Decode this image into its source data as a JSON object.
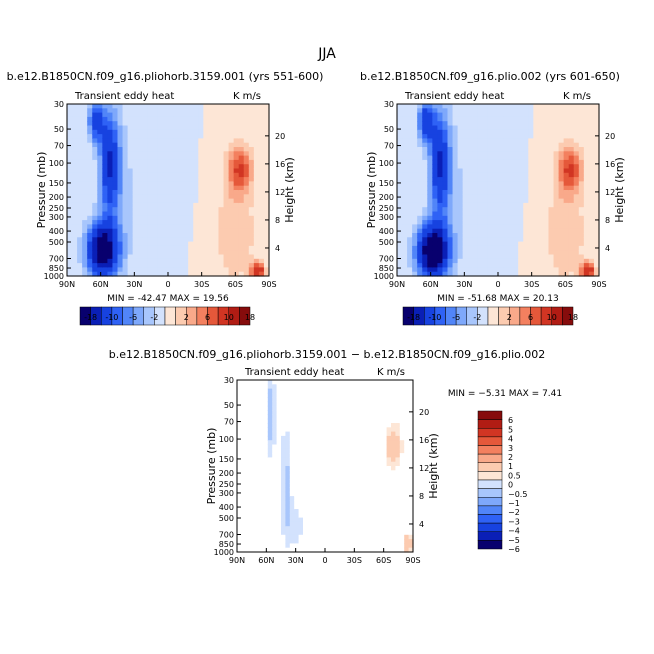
{
  "figure": {
    "title": "JJA"
  },
  "chart_data": [
    {
      "type": "heatmap",
      "title": "b.e12.B1850CN.f09_g16.pliohorb.3159.001 (yrs 551-600)",
      "subtitle_left": "Transient eddy heat",
      "subtitle_right": "K m/s",
      "ylabel": "Pressure (mb)",
      "ylabel_right": "Height (km)",
      "x_ticks": [
        "90N",
        "60N",
        "30N",
        "0",
        "30S",
        "60S",
        "90S"
      ],
      "y_ticks": [
        "30",
        "50",
        "70",
        "100",
        "150",
        "200",
        "250",
        "300",
        "400",
        "500",
        "700",
        "850",
        "1000"
      ],
      "height_ticks": [
        "20",
        "16",
        "12",
        "8",
        "4"
      ],
      "stats": {
        "min_label": "MIN =",
        "min": "-42.47",
        "max_label": "MAX =",
        "max": "19.56"
      },
      "colorbar_labels": [
        "-18",
        "-10",
        "-6",
        "-2",
        "2",
        "6",
        "10",
        "18"
      ],
      "fields": [
        {
          "sign": 1,
          "lat": -64,
          "p": 0.38,
          "wx": 11,
          "wy": 0.14,
          "amp": 10
        },
        {
          "sign": 1,
          "lat": -80,
          "p": 0.97,
          "wx": 6,
          "wy": 0.05,
          "amp": 14
        },
        {
          "sign": 1,
          "lat": -60,
          "p": 0.75,
          "wx": 18,
          "wy": 0.3,
          "amp": 4
        },
        {
          "sign": -1,
          "lat": 58,
          "p": 0.85,
          "wx": 14,
          "wy": 0.16,
          "amp": 22
        },
        {
          "sign": -1,
          "lat": 52,
          "p": 0.35,
          "wx": 9,
          "wy": 0.3,
          "amp": 14
        },
        {
          "sign": -1,
          "lat": 64,
          "p": 0.1,
          "wx": 7,
          "wy": 0.12,
          "amp": 12
        },
        {
          "sign": -1,
          "lat": 40,
          "p": 0.5,
          "wx": 12,
          "wy": 0.45,
          "amp": 2.5
        },
        {
          "sign": -1,
          "lat": -5,
          "p": 0.45,
          "wx": 12,
          "wy": 0.25,
          "amp": 1.2
        }
      ]
    },
    {
      "type": "heatmap",
      "title": "b.e12.B1850CN.f09_g16.plio.002 (yrs 601-650)",
      "subtitle_left": "Transient eddy heat",
      "subtitle_right": "K m/s",
      "ylabel": "Pressure (mb)",
      "ylabel_right": "Height (km)",
      "x_ticks": [
        "90N",
        "60N",
        "30N",
        "0",
        "30S",
        "60S",
        "90S"
      ],
      "y_ticks": [
        "30",
        "50",
        "70",
        "100",
        "150",
        "200",
        "250",
        "300",
        "400",
        "500",
        "700",
        "850",
        "1000"
      ],
      "height_ticks": [
        "20",
        "16",
        "12",
        "8",
        "4"
      ],
      "stats": {
        "min_label": "MIN =",
        "min": "-51.68",
        "max_label": "MAX =",
        "max": "20.13"
      },
      "colorbar_labels": [
        "-18",
        "-10",
        "-6",
        "-2",
        "2",
        "6",
        "10",
        "18"
      ],
      "fields": [
        {
          "sign": 1,
          "lat": -64,
          "p": 0.38,
          "wx": 11,
          "wy": 0.14,
          "amp": 10
        },
        {
          "sign": 1,
          "lat": -80,
          "p": 0.97,
          "wx": 6,
          "wy": 0.05,
          "amp": 14
        },
        {
          "sign": 1,
          "lat": -60,
          "p": 0.75,
          "wx": 18,
          "wy": 0.3,
          "amp": 4
        },
        {
          "sign": -1,
          "lat": 58,
          "p": 0.86,
          "wx": 14,
          "wy": 0.16,
          "amp": 24
        },
        {
          "sign": -1,
          "lat": 52,
          "p": 0.35,
          "wx": 9,
          "wy": 0.3,
          "amp": 14
        },
        {
          "sign": -1,
          "lat": 64,
          "p": 0.1,
          "wx": 7,
          "wy": 0.12,
          "amp": 13
        },
        {
          "sign": -1,
          "lat": 40,
          "p": 0.5,
          "wx": 12,
          "wy": 0.45,
          "amp": 2.5
        },
        {
          "sign": -1,
          "lat": -5,
          "p": 0.45,
          "wx": 12,
          "wy": 0.25,
          "amp": 1.2
        }
      ]
    },
    {
      "type": "heatmap",
      "title": "b.e12.B1850CN.f09_g16.pliohorb.3159.001 − b.e12.B1850CN.f09_g16.plio.002",
      "subtitle_left": "Transient eddy heat",
      "subtitle_right": "K m/s",
      "ylabel": "Pressure (mb)",
      "ylabel_right": "Height (km)",
      "x_ticks": [
        "90N",
        "60N",
        "30N",
        "0",
        "30S",
        "60S",
        "90S"
      ],
      "y_ticks": [
        "30",
        "50",
        "70",
        "100",
        "150",
        "200",
        "250",
        "300",
        "400",
        "500",
        "700",
        "850",
        "1000"
      ],
      "height_ticks": [
        "20",
        "16",
        "12",
        "8",
        "4"
      ],
      "stats": {
        "min_label": "MIN =",
        "min": "−5.31",
        "max_label": "MAX =",
        "max": "7.41"
      },
      "colorbar_labels": [
        "6",
        "5",
        "4",
        "3",
        "2",
        "1",
        "0.5",
        "0",
        "−0.5",
        "−1",
        "−2",
        "−3",
        "−4",
        "−5",
        "−6"
      ],
      "fields": [
        {
          "sign": 1,
          "lat": -70,
          "p": 0.38,
          "wx": 8,
          "wy": 0.12,
          "amp": 1.8
        },
        {
          "sign": 1,
          "lat": -85,
          "p": 0.95,
          "wx": 4,
          "wy": 0.05,
          "amp": 2.5
        },
        {
          "sign": 1,
          "lat": -20,
          "p": 0.5,
          "wx": 15,
          "wy": 0.45,
          "amp": 0.45
        },
        {
          "sign": -1,
          "lat": 55,
          "p": 0.2,
          "wx": 4,
          "wy": 0.25,
          "amp": 1.6
        },
        {
          "sign": -1,
          "lat": 40,
          "p": 0.6,
          "wx": 6,
          "wy": 0.35,
          "amp": 1.2
        },
        {
          "sign": -1,
          "lat": 30,
          "p": 0.85,
          "wx": 8,
          "wy": 0.12,
          "amp": 0.9
        },
        {
          "sign": -1,
          "lat": 10,
          "p": 0.4,
          "wx": 12,
          "wy": 0.5,
          "amp": 0.3
        }
      ]
    }
  ],
  "colors": {
    "neg": [
      "#08006e",
      "#0a1fb6",
      "#1742e0",
      "#2f62f5",
      "#5185f8",
      "#7ea8fb",
      "#a8c6fc",
      "#d3e2fd"
    ],
    "pos": [
      "#fde6d6",
      "#fccbb0",
      "#f9a98a",
      "#f3805f",
      "#e5583a",
      "#d13523",
      "#b11c14",
      "#860c0c"
    ]
  }
}
